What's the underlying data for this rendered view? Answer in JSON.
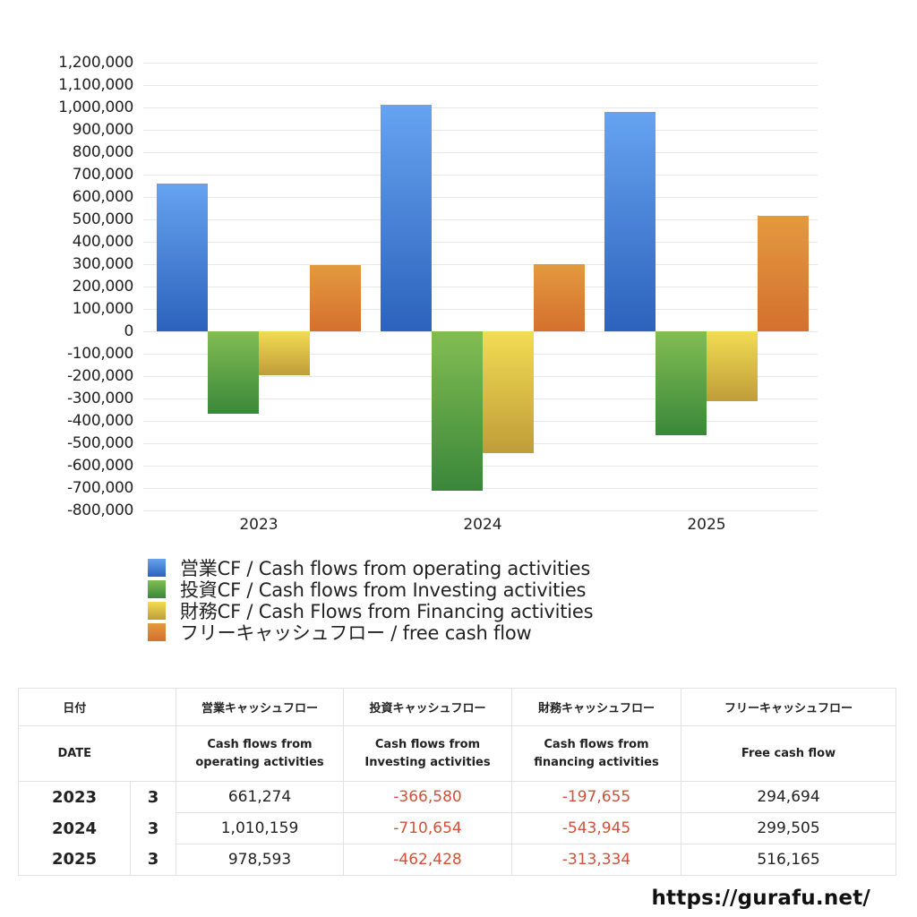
{
  "chart_data": {
    "type": "bar",
    "title": "",
    "xlabel": "",
    "ylabel": "",
    "categories": [
      "2023",
      "2024",
      "2025"
    ],
    "ylim": [
      -800000,
      1200000
    ],
    "yticks": [
      1200000,
      1100000,
      1000000,
      900000,
      800000,
      700000,
      600000,
      500000,
      400000,
      300000,
      200000,
      100000,
      0,
      -100000,
      -200000,
      -300000,
      -400000,
      -500000,
      -600000,
      -700000,
      -800000
    ],
    "ytick_labels": [
      "1,200,000",
      "1,100,000",
      "1,000,000",
      "900,000",
      "800,000",
      "700,000",
      "600,000",
      "500,000",
      "400,000",
      "300,000",
      "200,000",
      "100,000",
      "0",
      "-100,000",
      "-200,000",
      "-300,000",
      "-400,000",
      "-500,000",
      "-600,000",
      "-700,000",
      "-800,000"
    ],
    "grid": true,
    "legend_position": "bottom",
    "series": [
      {
        "name": "営業CF / Cash flows from operating activities",
        "values": [
          661274,
          1010159,
          978593
        ],
        "color_top": "#66a3f0",
        "color_bottom": "#2c62bc"
      },
      {
        "name": "投資CF / Cash flows from Investing activities",
        "values": [
          -366580,
          -710654,
          -462428
        ],
        "color_top": "#82bd52",
        "color_bottom": "#3a873a"
      },
      {
        "name": "財務CF / Cash Flows from Financing activities",
        "values": [
          -197655,
          -543945,
          -313334
        ],
        "color_top": "#f2dc52",
        "color_bottom": "#bf9d3a"
      },
      {
        "name": "フリーキャッシュフロー / free cash flow",
        "values": [
          294694,
          299505,
          516165
        ],
        "color_top": "#e39a3e",
        "color_bottom": "#d4702e"
      }
    ]
  },
  "table": {
    "header_jp": [
      "日付",
      "",
      "営業キャッシュフロー",
      "投資キャッシュフロー",
      "財務キャッシュフロー",
      "フリーキャッシュフロー"
    ],
    "header_en": [
      "DATE",
      "",
      "Cash flows from\noperating activities",
      "Cash flows from\nInvesting activities",
      "Cash flows from\nfinancing activities",
      "Free cash flow"
    ],
    "rows": [
      {
        "year": "2023",
        "month": "3",
        "operating": "661,274",
        "investing": "-366,580",
        "financing": "-197,655",
        "free": "294,694"
      },
      {
        "year": "2024",
        "month": "3",
        "operating": "1,010,159",
        "investing": "-710,654",
        "financing": "-543,945",
        "free": "299,505"
      },
      {
        "year": "2025",
        "month": "3",
        "operating": "978,593",
        "investing": "-462,428",
        "financing": "-313,334",
        "free": "516,165"
      }
    ],
    "negative_color": "#d2503a"
  },
  "footer": {
    "url_text": "https://gurafu.net/"
  }
}
